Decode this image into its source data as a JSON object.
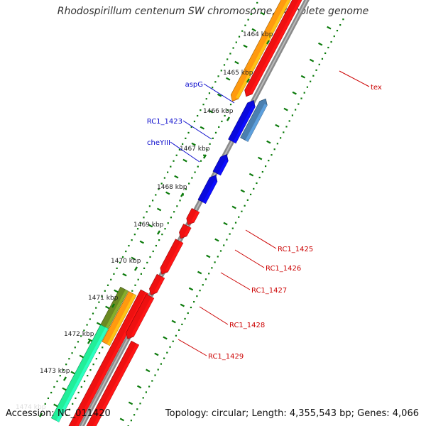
{
  "title": "Rhodospirillum centenum SW chromosome, complete genome",
  "footer": {
    "accession": "Accession: NC_011420",
    "summary": "Topology: circular; Length: 4,355,543 bp; Genes: 4,066"
  },
  "colors": {
    "backbone": "#8a8a8a",
    "forward_gene": "#ee1111",
    "reverse_gene": "#0a0add",
    "reverse_light": "#4a7fb0",
    "orange": "#ff9a10",
    "olive": "#6b8a22",
    "teal": "#22ee99",
    "tick": "#0a7a0a",
    "label_blue": "#0a0acc",
    "label_red": "#cc0000"
  },
  "ticks": [
    {
      "label": "1464 kbp"
    },
    {
      "label": "1465 kbp"
    },
    {
      "label": "1466 kbp"
    },
    {
      "label": "1467 kbp"
    },
    {
      "label": "1468 kbp"
    },
    {
      "label": "1469 kbp"
    },
    {
      "label": "1470 kbp"
    },
    {
      "label": "1471 kbp"
    },
    {
      "label": "1472 kbp"
    },
    {
      "label": "1473 kbp"
    },
    {
      "label": "1474 kbp"
    }
  ],
  "genes_left": [
    {
      "label": "aspG"
    },
    {
      "label": "RC1_1423"
    },
    {
      "label": "cheYIII"
    }
  ],
  "genes_right": [
    {
      "label": "tex"
    },
    {
      "label": "RC1_1425"
    },
    {
      "label": "RC1_1426"
    },
    {
      "label": "RC1_1427"
    },
    {
      "label": "RC1_1428"
    },
    {
      "label": "RC1_1429"
    }
  ]
}
